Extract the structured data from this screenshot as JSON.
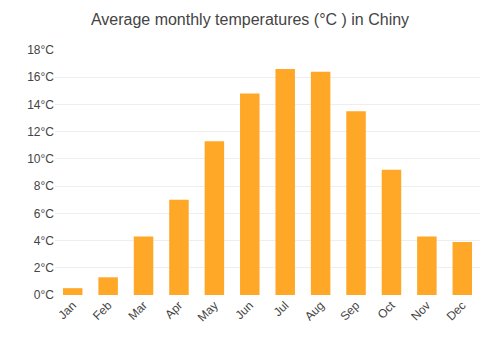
{
  "chart_data": {
    "type": "bar",
    "title": "Average monthly temperatures (°C ) in Chiny",
    "categories": [
      "Jan",
      "Feb",
      "Mar",
      "Apr",
      "May",
      "Jun",
      "Jul",
      "Aug",
      "Sep",
      "Oct",
      "Nov",
      "Dec"
    ],
    "values": [
      0.5,
      1.3,
      4.3,
      7.0,
      11.3,
      14.8,
      16.6,
      16.4,
      13.5,
      9.2,
      4.3,
      3.9
    ],
    "color": "#FFA726",
    "ylim": [
      0,
      18
    ],
    "yticks": [
      {
        "value": 0,
        "label": "0°C"
      },
      {
        "value": 2,
        "label": "2°C"
      },
      {
        "value": 4,
        "label": "4°C"
      },
      {
        "value": 6,
        "label": "6°C"
      },
      {
        "value": 8,
        "label": "8°C"
      },
      {
        "value": 10,
        "label": "10°C"
      },
      {
        "value": 12,
        "label": "12°C"
      },
      {
        "value": 14,
        "label": "14°C"
      },
      {
        "value": 16,
        "label": "16°C"
      },
      {
        "value": 18,
        "label": "18°C"
      }
    ],
    "grid": true
  }
}
